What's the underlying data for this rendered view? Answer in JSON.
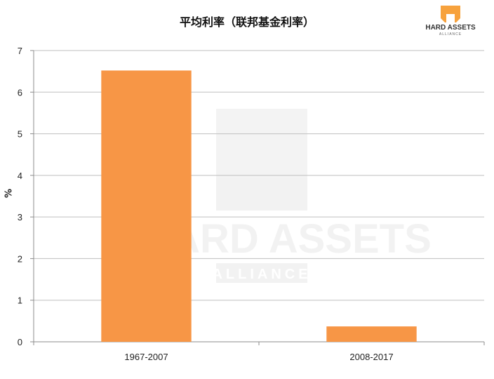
{
  "chart_data": {
    "type": "bar",
    "title": "平均利率（联邦基金利率）",
    "ylabel": "%",
    "xlabel": "",
    "categories": [
      "1967-2007",
      "2008-2017"
    ],
    "values": [
      6.52,
      0.37
    ],
    "ylim": [
      0,
      7
    ],
    "yticks": [
      "0",
      "1",
      "2",
      "3",
      "4",
      "5",
      "6",
      "7"
    ],
    "grid": true,
    "bar_color": "#f79646",
    "grid_color": "#bfbfbf"
  },
  "logo": {
    "text_main": "HARD ASSETS",
    "text_sub": "ALLIANCE",
    "color": "#f7a23d"
  },
  "watermark": {
    "text_main": "HARD ASSETS",
    "text_sub": "ALLIANCE"
  }
}
